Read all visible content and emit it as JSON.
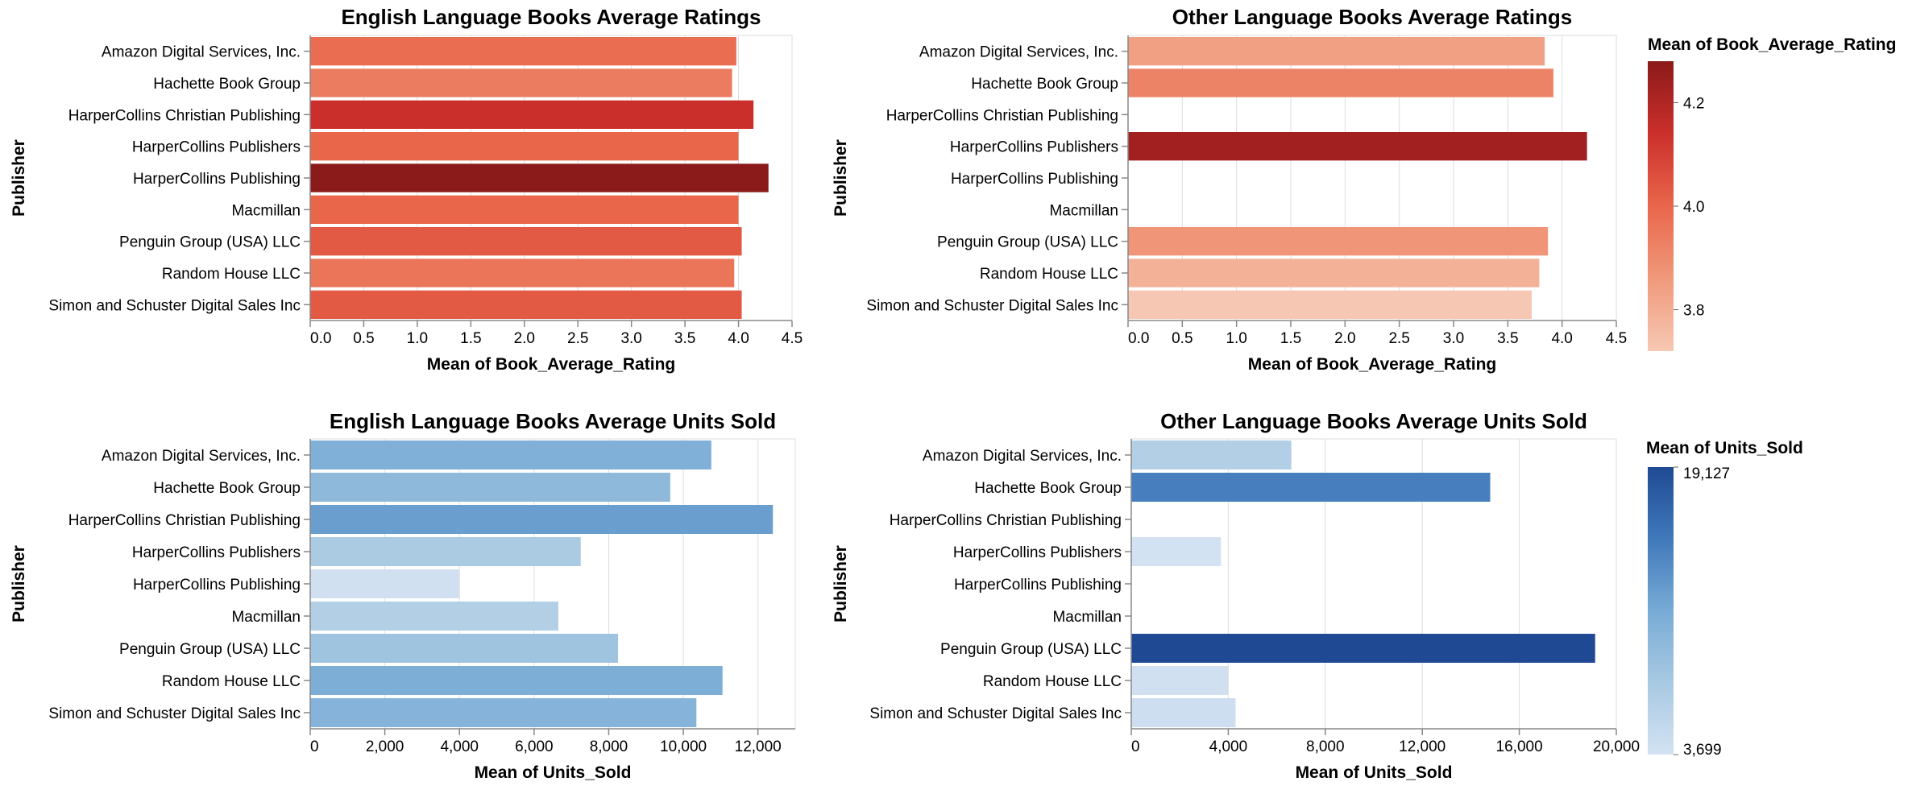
{
  "chart_data": [
    {
      "type": "bar",
      "orientation": "horizontal",
      "title": "English Language Books Average Ratings",
      "xlabel": "Mean of Book_Average_Rating",
      "ylabel": "Publisher",
      "categories": [
        "Amazon Digital Services,  Inc.",
        "Hachette Book Group",
        "HarperCollins Christian Publishing",
        "HarperCollins Publishers",
        "HarperCollins Publishing",
        "Macmillan",
        "Penguin Group (USA) LLC",
        "Random House LLC",
        "Simon and Schuster Digital Sales Inc"
      ],
      "values": [
        3.98,
        3.94,
        4.14,
        4.0,
        4.28,
        4.0,
        4.03,
        3.96,
        4.03
      ],
      "xlim": [
        0,
        4.5
      ],
      "xticks": [
        "0.0",
        "0.5",
        "1.0",
        "1.5",
        "2.0",
        "2.5",
        "3.0",
        "3.5",
        "4.0",
        "4.5"
      ],
      "grid": true,
      "color_scheme": "reds"
    },
    {
      "type": "bar",
      "orientation": "horizontal",
      "title": "Other Language Books Average Ratings",
      "xlabel": "Mean of Book_Average_Rating",
      "ylabel": "Publisher",
      "categories": [
        "Amazon Digital Services,  Inc.",
        "Hachette Book Group",
        "HarperCollins Christian Publishing",
        "HarperCollins Publishers",
        "HarperCollins Publishing",
        "Macmillan",
        "Penguin Group (USA) LLC",
        "Random House LLC",
        "Simon and Schuster Digital Sales Inc"
      ],
      "values": [
        3.84,
        3.92,
        null,
        4.23,
        null,
        null,
        3.87,
        3.79,
        3.72
      ],
      "xlim": [
        0,
        4.5
      ],
      "xticks": [
        "0.0",
        "0.5",
        "1.0",
        "1.5",
        "2.0",
        "2.5",
        "3.0",
        "3.5",
        "4.0",
        "4.5"
      ],
      "grid": true,
      "color_scheme": "reds"
    },
    {
      "type": "bar",
      "orientation": "horizontal",
      "title": "English  Language Books Average Units Sold",
      "xlabel": "Mean of Units_Sold",
      "ylabel": "Publisher",
      "categories": [
        "Amazon Digital Services,  Inc.",
        "Hachette Book Group",
        "HarperCollins Christian Publishing",
        "HarperCollins Publishers",
        "HarperCollins Publishing",
        "Macmillan",
        "Penguin Group (USA) LLC",
        "Random House LLC",
        "Simon and Schuster Digital Sales Inc"
      ],
      "values": [
        10750,
        9650,
        12400,
        7250,
        4000,
        6650,
        8250,
        11050,
        10350
      ],
      "xlim": [
        0,
        13000
      ],
      "xticks": [
        "0",
        "2,000",
        "4,000",
        "6,000",
        "8,000",
        "10,000",
        "12,000"
      ],
      "grid": true,
      "color_scheme": "blues"
    },
    {
      "type": "bar",
      "orientation": "horizontal",
      "title": "Other Language Books Average Units Sold",
      "xlabel": "Mean of Units_Sold",
      "ylabel": "Publisher",
      "categories": [
        "Amazon Digital Services,  Inc.",
        "Hachette Book Group",
        "HarperCollins Christian Publishing",
        "HarperCollins Publishers",
        "HarperCollins Publishing",
        "Macmillan",
        "Penguin Group (USA) LLC",
        "Random House LLC",
        "Simon and Schuster Digital Sales Inc"
      ],
      "values": [
        6600,
        14800,
        null,
        3699,
        null,
        null,
        19127,
        4000,
        4300
      ],
      "xlim": [
        0,
        20000
      ],
      "xticks": [
        "0",
        "4,000",
        "8,000",
        "12,000",
        "16,000",
        "20,000"
      ],
      "grid": true,
      "color_scheme": "blues"
    }
  ],
  "legends": [
    {
      "title": "Mean of Book_Average_Rating",
      "domain": [
        3.72,
        4.28
      ],
      "labels": [
        "4.2",
        "4.0",
        "3.8"
      ],
      "label_values": [
        4.2,
        4.0,
        3.8
      ],
      "color_high": "#8b1a1a",
      "color_low": "#f6c8b3"
    },
    {
      "title": "Mean of Units_Sold",
      "domain": [
        3699,
        19127
      ],
      "labels": [
        "19,127",
        "3,699"
      ],
      "label_values": [
        19127,
        3699
      ],
      "color_high": "#1f4a93",
      "color_low": "#cfdff0"
    }
  ],
  "colors": {
    "reds": [
      "#f6c8b3",
      "#f0997b",
      "#e9664b",
      "#cb2f2b",
      "#8b1a1a"
    ],
    "blues": [
      "#d3e2f2",
      "#a8c9e2",
      "#78abd5",
      "#4079bb",
      "#1f4a93"
    ],
    "grid": "#dddddd",
    "axis": "#888888"
  }
}
